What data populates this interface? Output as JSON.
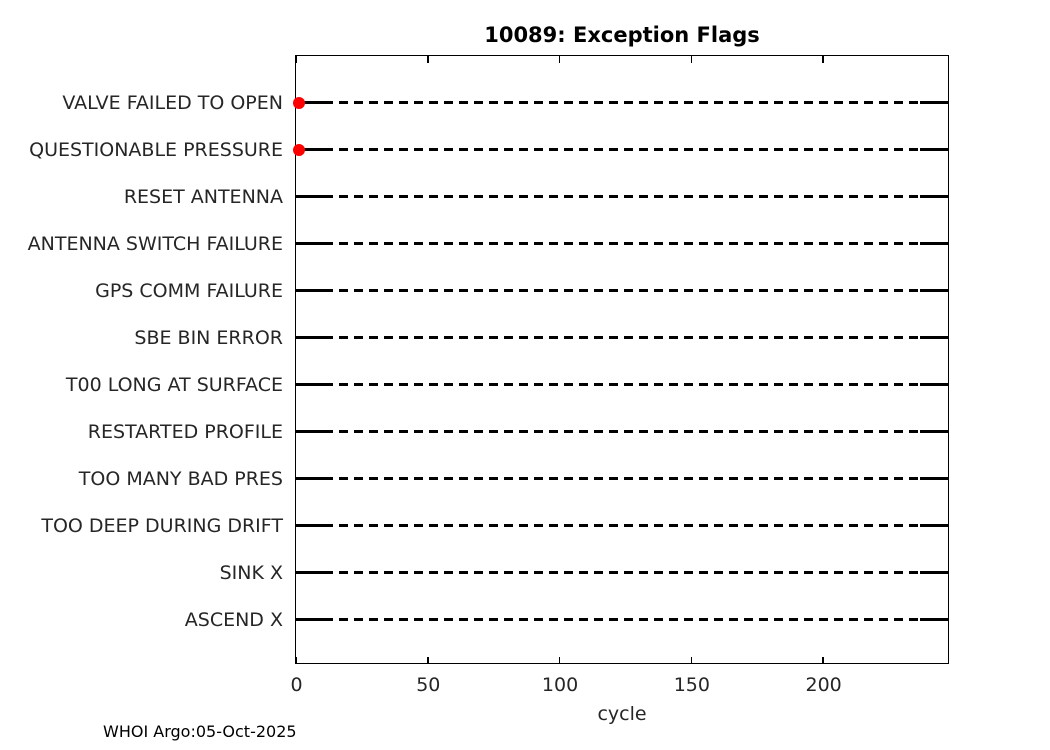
{
  "chart_data": {
    "type": "scatter",
    "title": "10089: Exception Flags",
    "xlabel": "cycle",
    "ylabel": "",
    "x_ticks": [
      0,
      50,
      100,
      150,
      200
    ],
    "xlim": [
      0,
      247
    ],
    "categories": [
      "VALVE FAILED TO OPEN",
      "QUESTIONABLE PRESSURE",
      "RESET ANTENNA",
      "ANTENNA SWITCH FAILURE",
      "GPS COMM FAILURE",
      "SBE BIN ERROR",
      "T00 LONG AT SURFACE",
      "RESTARTED PROFILE",
      "TOO MANY BAD PRES",
      "TOO DEEP DURING DRIFT",
      "SINK X",
      "ASCEND X"
    ],
    "flags": [
      {
        "category": "VALVE FAILED TO OPEN",
        "cycles": [
          1
        ]
      },
      {
        "category": "QUESTIONABLE PRESSURE",
        "cycles": [
          1
        ]
      }
    ],
    "marker": {
      "shape": "filled-circle",
      "color": "#ff0000"
    },
    "row_line_style": "dashed",
    "grid": false,
    "legend": "none",
    "colors": {
      "line": "#000000",
      "axis": "#000000",
      "tick_text": "#262626",
      "title_text": "#000000",
      "background": "#ffffff"
    },
    "footer": "WHOI Argo:05-Oct-2025"
  }
}
